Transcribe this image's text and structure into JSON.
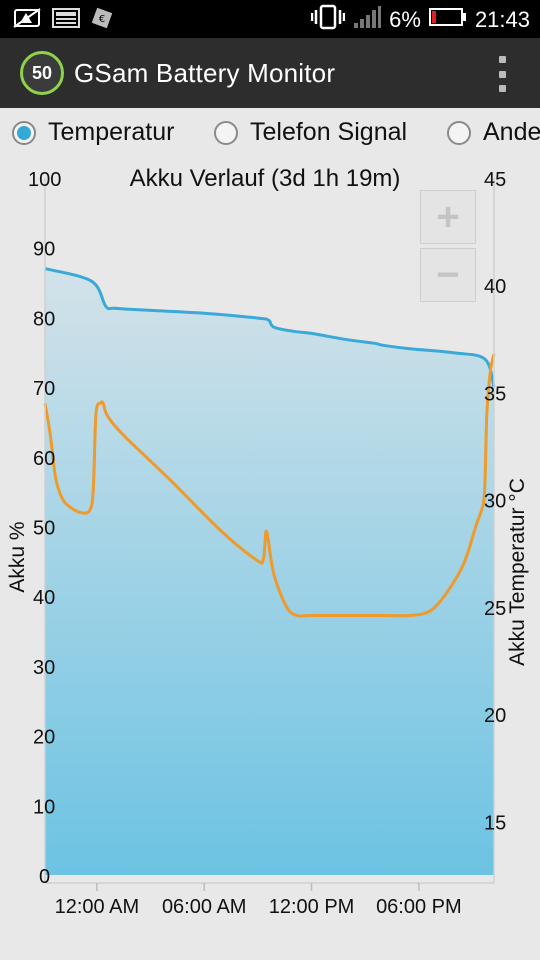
{
  "status_bar": {
    "battery_percent": "6%",
    "time": "21:43",
    "icons": [
      "notification-icon",
      "screenshot-icon",
      "app-icon",
      "vibrate-icon",
      "signal-icon",
      "battery-icon"
    ]
  },
  "app": {
    "logo_text": "50",
    "title": "GSam Battery Monitor",
    "accent": "#8fd34a"
  },
  "options": [
    {
      "label": "Temperatur",
      "selected": true
    },
    {
      "label": "Telefon Signal",
      "selected": false
    },
    {
      "label": "Andere",
      "selected": false
    }
  ],
  "chart_data": {
    "type": "area",
    "title": "Akku Verlauf (3d 1h 19m)",
    "ylabel": "Akku %",
    "y2label": "Akku Temperatur °C",
    "ylim": [
      0,
      100
    ],
    "y2lim": [
      12.5,
      45
    ],
    "yticks": [
      "0",
      "10",
      "20",
      "30",
      "40",
      "50",
      "60",
      "70",
      "80",
      "90",
      "100"
    ],
    "y2ticks": [
      "15",
      "20",
      "25",
      "30",
      "35",
      "40",
      "45"
    ],
    "xticks": [
      "12:00 AM",
      "06:00 AM",
      "12:00 PM",
      "06:00 PM"
    ],
    "xtick_hours": [
      0,
      6,
      12,
      18
    ],
    "xlim_hours": [
      -2.9,
      22.2
    ],
    "grid": false,
    "series": [
      {
        "name": "Akku",
        "axis": "left",
        "color": "#3aa9d9",
        "x": [
          -2.9,
          -0.3,
          0.5,
          1.0,
          3.0,
          6.0,
          9.0,
          9.6,
          9.9,
          11.0,
          12.0,
          14.0,
          15.5,
          16.0,
          17.5,
          20.0,
          21.7,
          22.2
        ],
        "y": [
          87.0,
          85.2,
          81.6,
          81.3,
          81.0,
          80.6,
          79.9,
          79.6,
          78.6,
          78.0,
          77.7,
          76.8,
          76.3,
          76.0,
          75.5,
          74.9,
          74.0,
          70.0
        ]
      },
      {
        "name": "Akku Temperatur",
        "axis": "right",
        "color": "#ef9a2a",
        "x": [
          -2.9,
          -2.6,
          -2.3,
          -1.9,
          -1.4,
          -0.9,
          -0.4,
          -0.2,
          -0.05,
          0.2,
          0.35,
          0.6,
          1.5,
          4.0,
          7.0,
          8.9,
          9.3,
          9.45,
          9.6,
          9.9,
          10.6,
          11.2,
          12.0,
          14.0,
          16.0,
          17.5,
          18.6,
          19.5,
          20.5,
          21.2,
          21.6,
          21.7,
          21.8,
          22.0,
          22.2
        ],
        "y": [
          34.5,
          33.0,
          31.0,
          30.0,
          29.6,
          29.4,
          29.5,
          30.5,
          34.0,
          34.5,
          34.5,
          33.9,
          33.0,
          31.0,
          28.5,
          27.2,
          27.2,
          28.5,
          28.0,
          26.5,
          25.0,
          24.6,
          24.6,
          24.6,
          24.6,
          24.6,
          24.8,
          25.6,
          27.0,
          28.8,
          29.8,
          31.0,
          34.0,
          36.0,
          36.8
        ]
      }
    ]
  },
  "zoom": {
    "in_label": "+",
    "out_label": "−"
  }
}
